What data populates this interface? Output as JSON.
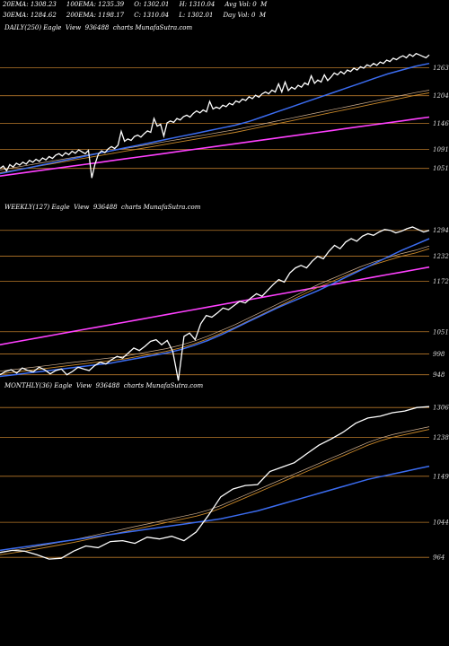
{
  "header": {
    "line1": "20EMA: 1308.23     100EMA: 1235.39     O: 1302.01     H: 1310.04     Avg Vol: 0  M",
    "line2": "30EMA: 1284.62     200EMA: 1198.17     C: 1310.04     L: 1302.01     Day Vol: 0  M"
  },
  "colors": {
    "price": "#ffffff",
    "ema_fast": "#3b6cf0",
    "ema_slow": "#ff40ff",
    "ema_mid": "#c8882a",
    "ema_mid2": "#d0b090",
    "level_line": "#b8782a"
  },
  "chart_data": [
    {
      "type": "line",
      "title": "DAILY(250) Eagle  View  936488  charts MunafaSutra.com",
      "y_levels": [
        1263,
        1204,
        1146,
        1091,
        1051
      ],
      "y_level_labels": [
        "1263",
        "1204",
        "1146",
        "1091",
        "1051"
      ],
      "ylim": [
        990,
        1330
      ],
      "series": [
        {
          "key": "price",
          "values": [
            1051,
            1056,
            1046,
            1059,
            1054,
            1062,
            1058,
            1064,
            1060,
            1068,
            1064,
            1070,
            1066,
            1073,
            1069,
            1076,
            1072,
            1079,
            1082,
            1077,
            1084,
            1080,
            1087,
            1083,
            1090,
            1086,
            1082,
            1089,
            1031,
            1060,
            1081,
            1088,
            1084,
            1092,
            1097,
            1093,
            1100,
            1129,
            1108,
            1113,
            1110,
            1118,
            1121,
            1117,
            1124,
            1130,
            1127,
            1156,
            1140,
            1144,
            1119,
            1147,
            1151,
            1148,
            1156,
            1153,
            1160,
            1163,
            1159,
            1167,
            1172,
            1168,
            1174,
            1170,
            1192,
            1176,
            1180,
            1177,
            1184,
            1181,
            1188,
            1185,
            1193,
            1190,
            1197,
            1194,
            1202,
            1198,
            1205,
            1201,
            1208,
            1212,
            1208,
            1216,
            1212,
            1229,
            1212,
            1233,
            1215,
            1222,
            1218,
            1226,
            1222,
            1231,
            1227,
            1246,
            1230,
            1237,
            1233,
            1248,
            1236,
            1243,
            1252,
            1248,
            1255,
            1250,
            1258,
            1255,
            1262,
            1258,
            1265,
            1262,
            1269,
            1266,
            1272,
            1268,
            1275,
            1272,
            1279,
            1276,
            1283,
            1280,
            1285,
            1288,
            1284,
            1291,
            1287,
            1293,
            1290,
            1287,
            1284,
            1290
          ]
        },
        {
          "key": "ema_fast",
          "values": [
            1040,
            1046,
            1052,
            1058,
            1064,
            1070,
            1076,
            1082,
            1088,
            1094,
            1100,
            1106,
            1112,
            1118,
            1124,
            1130,
            1136,
            1142,
            1150,
            1160,
            1170,
            1180,
            1190,
            1200,
            1210,
            1220,
            1230,
            1240,
            1250,
            1258,
            1266,
            1272
          ]
        },
        {
          "key": "ema_mid",
          "values": [
            1042,
            1047,
            1052,
            1057,
            1062,
            1067,
            1072,
            1077,
            1082,
            1087,
            1092,
            1097,
            1102,
            1107,
            1112,
            1117,
            1122,
            1127,
            1133,
            1139,
            1145,
            1151,
            1157,
            1163,
            1169,
            1175,
            1181,
            1187,
            1193,
            1199,
            1205,
            1210
          ]
        },
        {
          "key": "ema_slow",
          "values": [
            1035,
            1039,
            1043,
            1047,
            1051,
            1055,
            1059,
            1063,
            1067,
            1071,
            1075,
            1079,
            1083,
            1087,
            1091,
            1095,
            1099,
            1103,
            1107,
            1111,
            1115,
            1119,
            1123,
            1127,
            1131,
            1135,
            1139,
            1143,
            1147,
            1151,
            1155,
            1159
          ]
        }
      ]
    },
    {
      "type": "line",
      "title": "WEEKLY(127) Eagle  View  936488  charts MunafaSutra.com",
      "y_levels": [
        1294,
        1232,
        1172,
        1051,
        998,
        948
      ],
      "y_level_labels": [
        "1294",
        "1232",
        "1172",
        "1051",
        "998",
        "948"
      ],
      "ylim": [
        900,
        1330
      ],
      "series": [
        {
          "key": "price",
          "values": [
            948,
            956,
            960,
            952,
            964,
            958,
            955,
            966,
            960,
            950,
            958,
            962,
            948,
            956,
            966,
            962,
            958,
            970,
            978,
            974,
            984,
            992,
            988,
            1000,
            1012,
            1006,
            1016,
            1028,
            1032,
            1020,
            1030,
            1004,
            934,
            1040,
            1048,
            1032,
            1070,
            1090,
            1086,
            1096,
            1108,
            1104,
            1114,
            1124,
            1120,
            1132,
            1142,
            1136,
            1150,
            1164,
            1176,
            1170,
            1192,
            1204,
            1210,
            1204,
            1220,
            1232,
            1226,
            1244,
            1258,
            1250,
            1266,
            1274,
            1268,
            1280,
            1286,
            1282,
            1290,
            1296,
            1294,
            1288,
            1292,
            1298,
            1302,
            1296,
            1290,
            1294
          ]
        },
        {
          "key": "ema_fast",
          "values": [
            944,
            948,
            952,
            956,
            960,
            964,
            968,
            972,
            976,
            982,
            988,
            994,
            1000,
            1008,
            1018,
            1030,
            1044,
            1060,
            1076,
            1092,
            1108,
            1122,
            1136,
            1150,
            1166,
            1182,
            1198,
            1214,
            1230,
            1246,
            1260,
            1274
          ]
        },
        {
          "key": "ema_mid",
          "values": [
            950,
            954,
            958,
            962,
            966,
            970,
            974,
            978,
            982,
            986,
            992,
            998,
            1004,
            1012,
            1022,
            1034,
            1048,
            1062,
            1078,
            1094,
            1110,
            1126,
            1142,
            1158,
            1172,
            1186,
            1200,
            1212,
            1222,
            1232,
            1240,
            1250
          ]
        },
        {
          "key": "ema_slow",
          "values": [
            1020,
            1026,
            1032,
            1038,
            1044,
            1050,
            1056,
            1062,
            1068,
            1074,
            1080,
            1086,
            1092,
            1098,
            1104,
            1110,
            1116,
            1122,
            1128,
            1134,
            1140,
            1146,
            1152,
            1158,
            1164,
            1170,
            1176,
            1182,
            1188,
            1194,
            1200,
            1206
          ]
        }
      ]
    },
    {
      "type": "line",
      "title": "MONTHLY(36) Eagle  View  936488  charts MunafaSutra.com",
      "y_levels": [
        1306,
        1238,
        1149,
        1044,
        964
      ],
      "y_level_labels": [
        "1306",
        "1238",
        "1149",
        "1044",
        "964"
      ],
      "ylim": [
        905,
        1335
      ],
      "series": [
        {
          "key": "price",
          "values": [
            975,
            980,
            978,
            970,
            960,
            962,
            978,
            990,
            986,
            1000,
            1002,
            996,
            1010,
            1006,
            1012,
            1002,
            1022,
            1060,
            1102,
            1120,
            1128,
            1130,
            1160,
            1170,
            1180,
            1200,
            1220,
            1234,
            1250,
            1270,
            1282,
            1286,
            1294,
            1298,
            1306,
            1308
          ]
        },
        {
          "key": "ema_fast",
          "values": [
            980,
            984,
            988,
            992,
            996,
            1000,
            1004,
            1008,
            1012,
            1016,
            1020,
            1024,
            1028,
            1032,
            1036,
            1040,
            1044,
            1048,
            1052,
            1058,
            1064,
            1070,
            1078,
            1086,
            1094,
            1102,
            1110,
            1118,
            1126,
            1134,
            1142,
            1148,
            1154,
            1160,
            1166,
            1172
          ]
        },
        {
          "key": "ema_mid",
          "values": [
            970,
            974,
            978,
            983,
            988,
            993,
            998,
            1004,
            1010,
            1016,
            1022,
            1028,
            1034,
            1040,
            1046,
            1052,
            1058,
            1066,
            1076,
            1088,
            1100,
            1112,
            1124,
            1136,
            1148,
            1160,
            1172,
            1184,
            1196,
            1208,
            1220,
            1230,
            1238,
            1244,
            1250,
            1256
          ]
        }
      ]
    }
  ]
}
